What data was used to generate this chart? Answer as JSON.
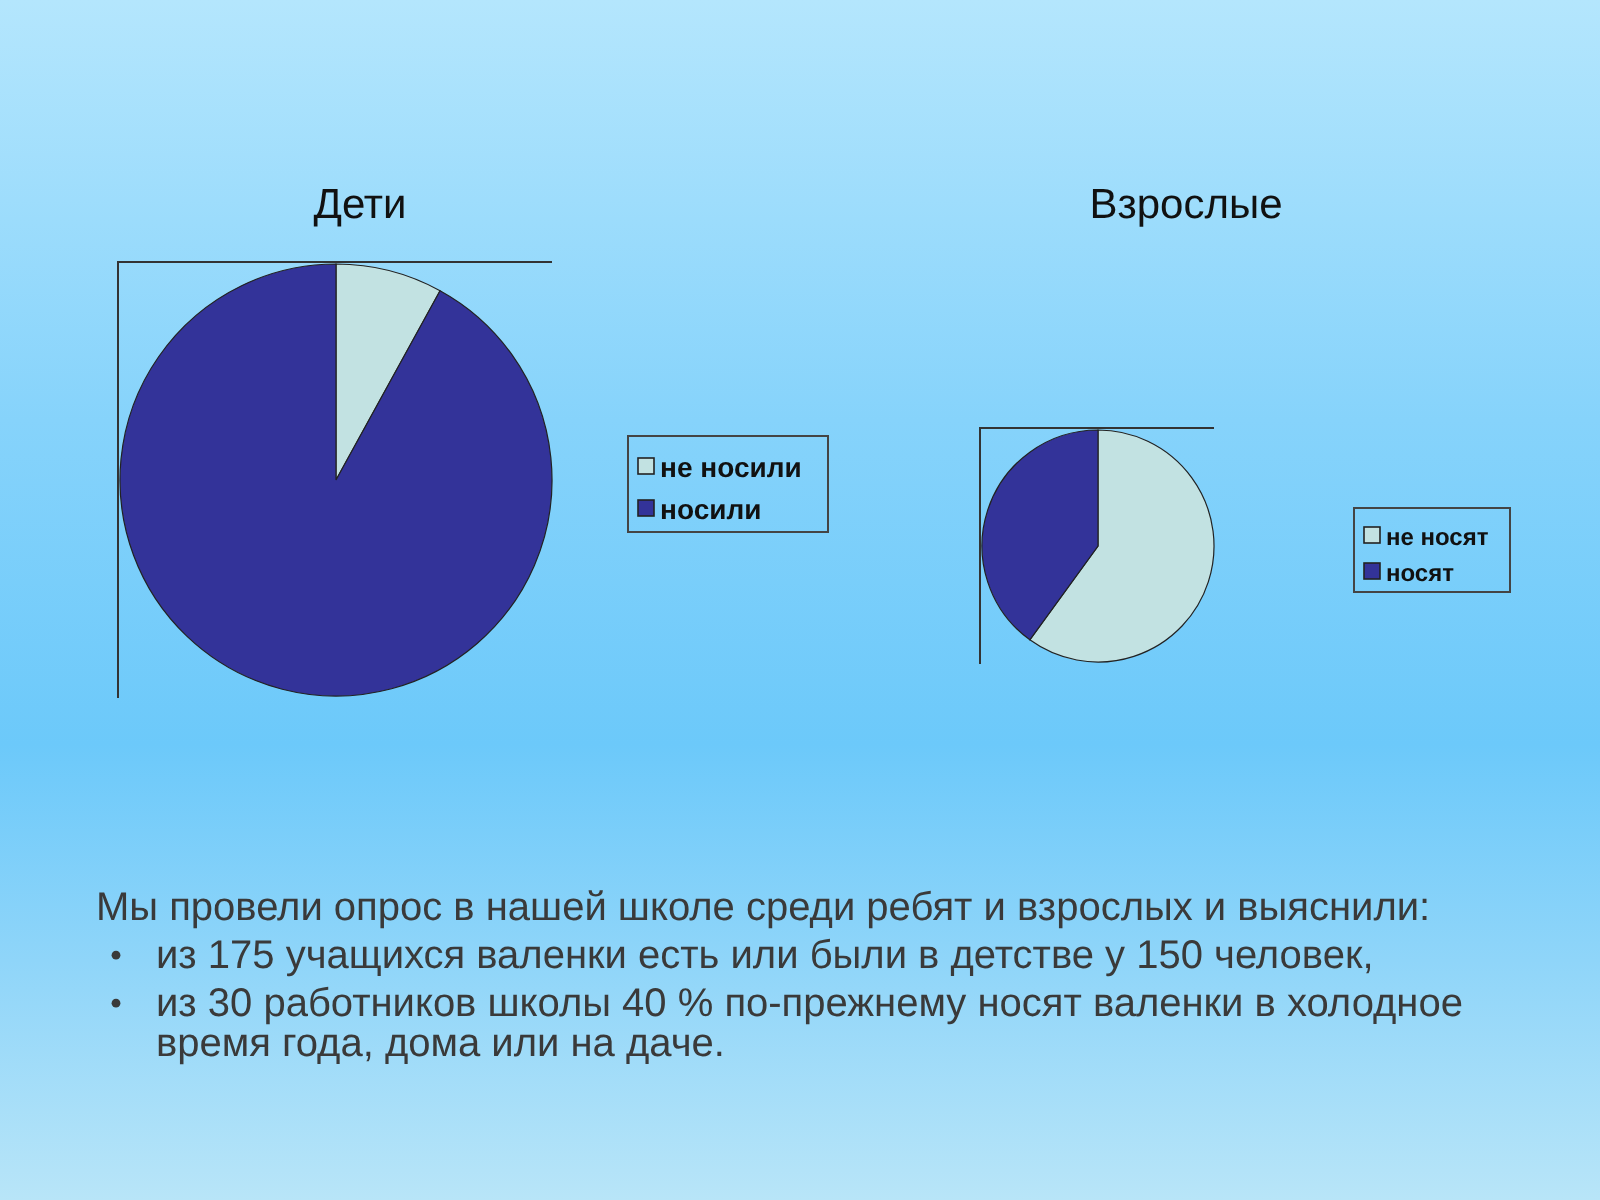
{
  "chart_data": [
    {
      "type": "pie",
      "title": "Дети",
      "categories": [
        "не носили",
        "носили"
      ],
      "values": [
        8,
        92
      ],
      "colors": [
        "#c2e2e2",
        "#333399"
      ],
      "legend": "right"
    },
    {
      "type": "pie",
      "title": "Взрослые",
      "categories": [
        "не носят",
        "носят"
      ],
      "values": [
        60,
        40
      ],
      "colors": [
        "#c2e2e2",
        "#333399"
      ],
      "legend": "right"
    },
    {
      "type": "other",
      "annotations": [
        "Мы провели опрос в нашей школе среди ребят и взрослых и выяснили:",
        "из 175 учащихся валенки есть или были в детстве у 150 человек,",
        "из 30 работников школы 40 % по-прежнему носят валенки в холодное время года, дома или на даче."
      ]
    }
  ]
}
